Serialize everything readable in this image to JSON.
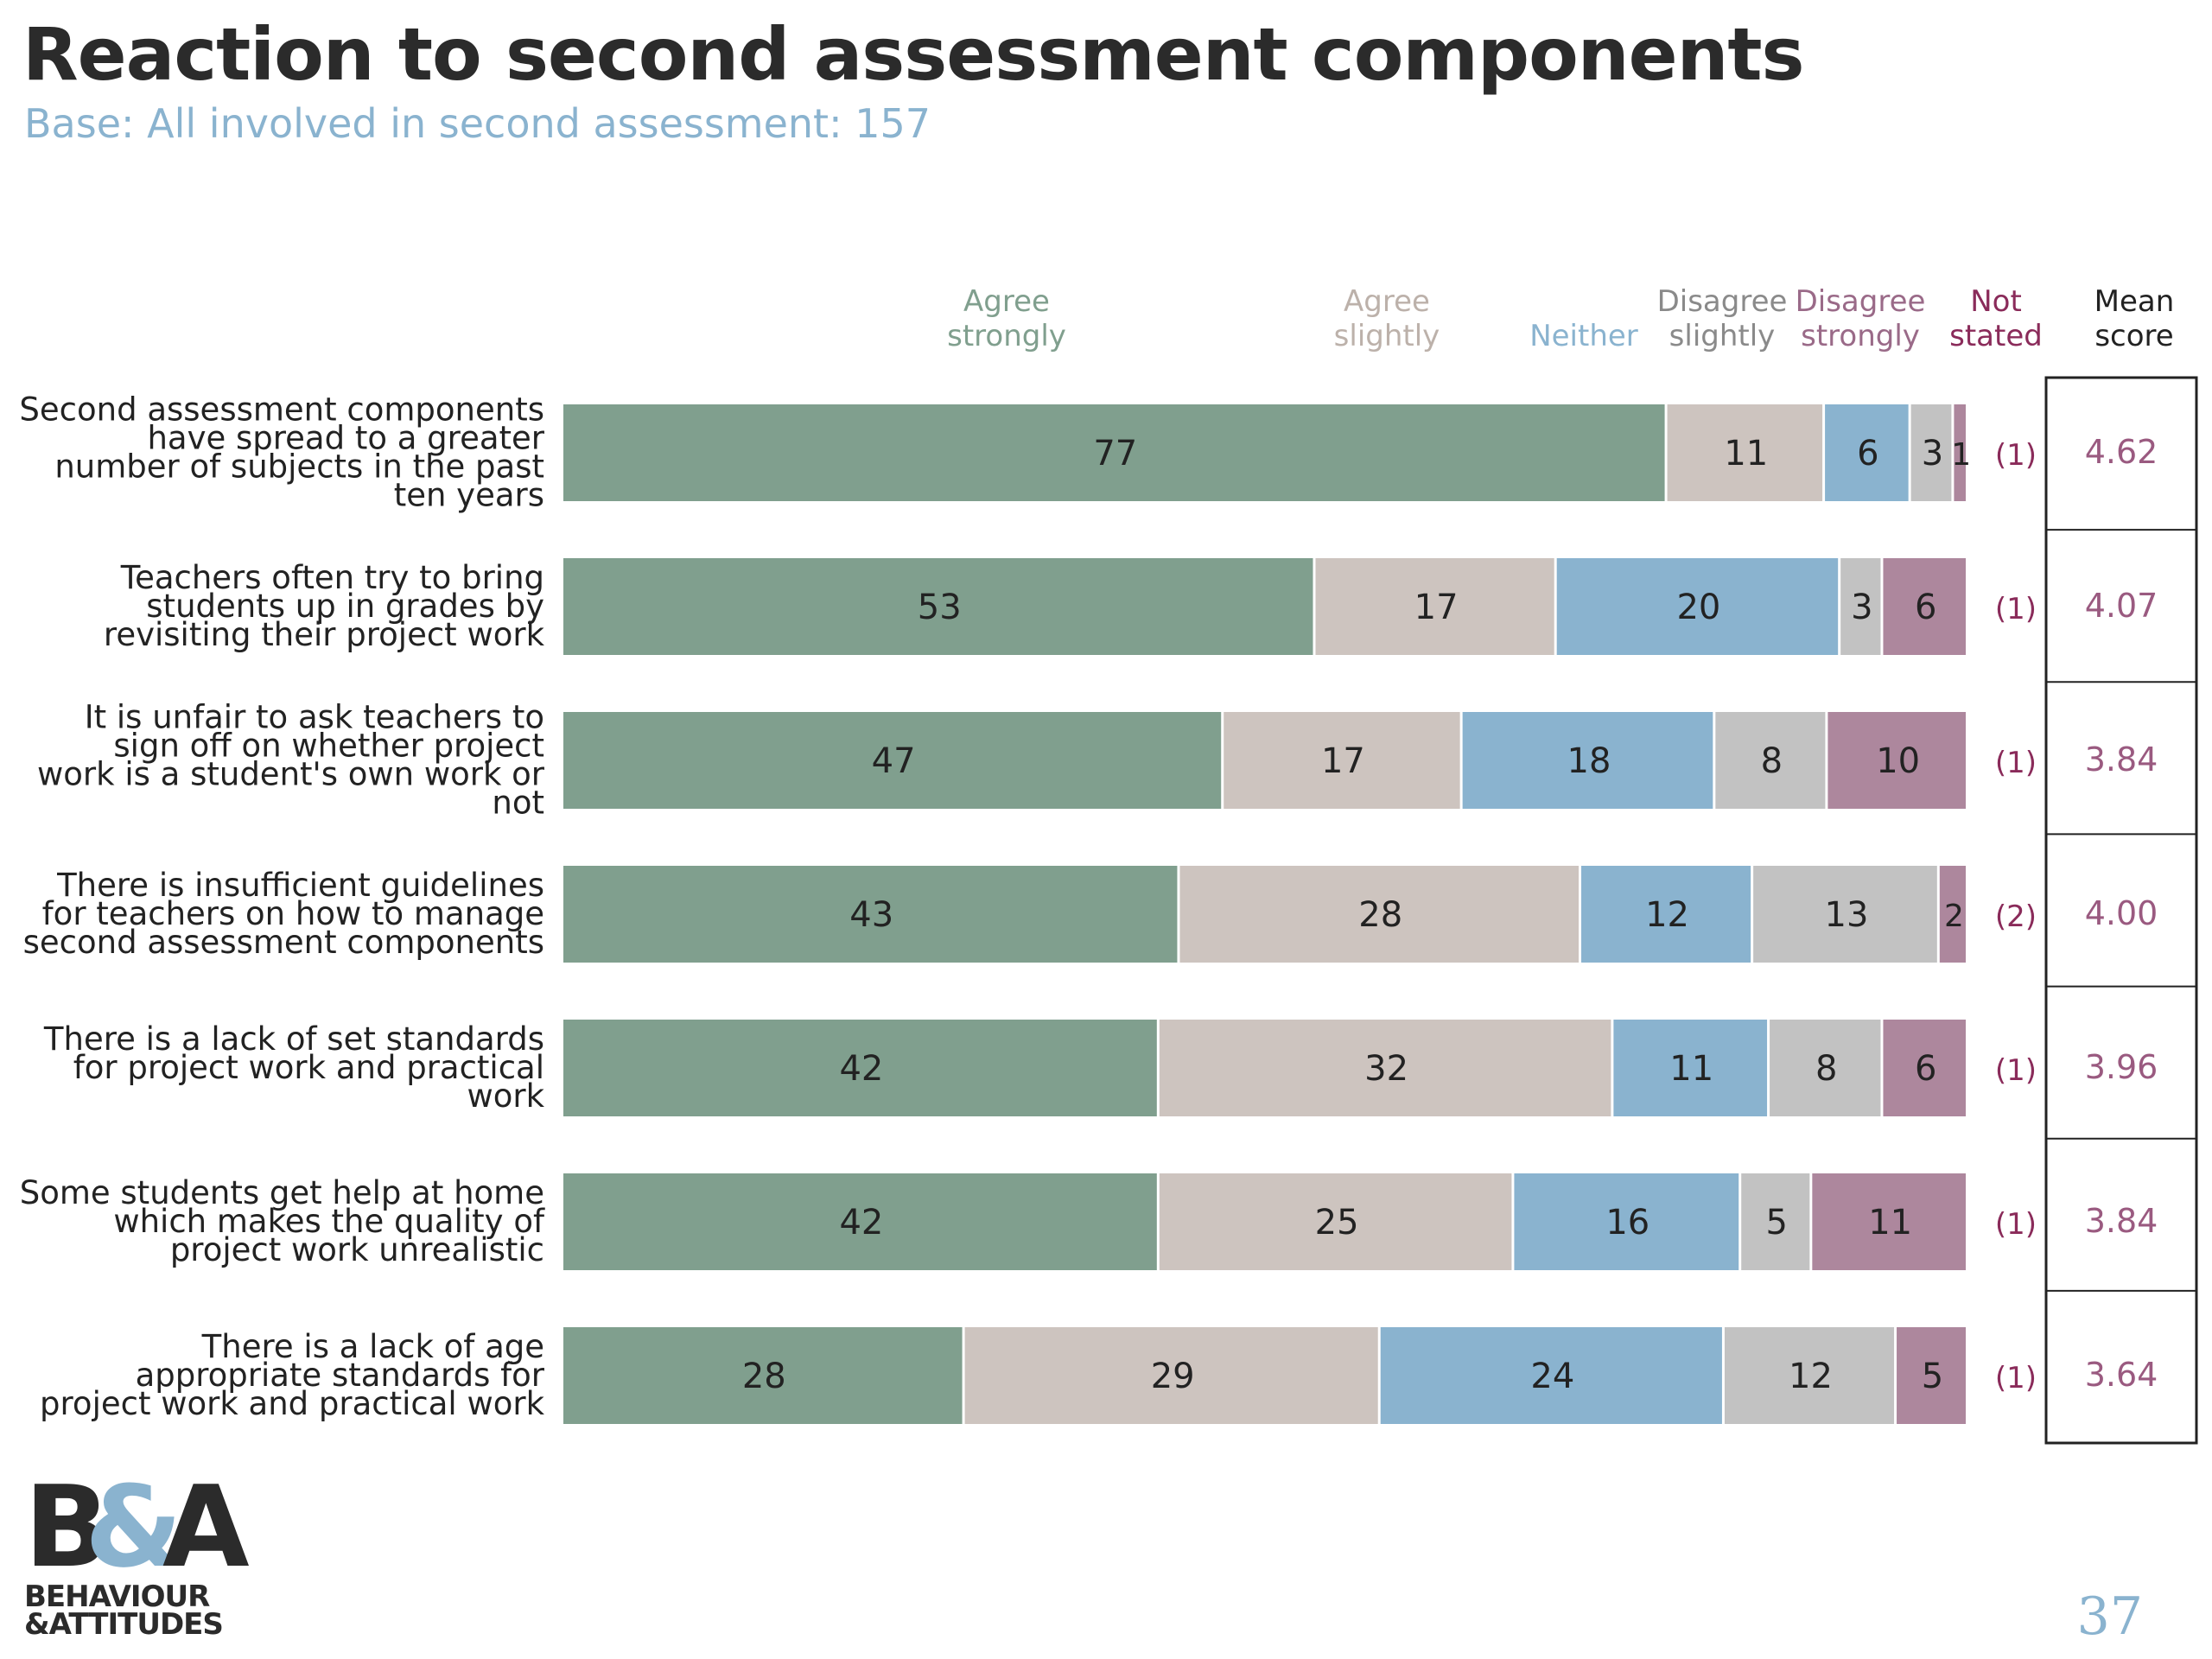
{
  "title": "Reaction to second assessment components",
  "subtitle": "Base: All involved in second assessment: 157",
  "page_number": "37",
  "logo": {
    "mark": "B&A",
    "line1": "BEHAVIOUR",
    "line2": "&ATTITUDES"
  },
  "colors": {
    "agree_strongly": "#809f8e",
    "agree_slightly": "#cdc4bf",
    "neither": "#8ab3cf",
    "disagree_slightly": "#c2c2c2",
    "disagree_strongly": "#ad879d",
    "not_stated": "#8a2b5a",
    "mean_score": "#9a5a80"
  },
  "chart_data": {
    "type": "bar",
    "orientation": "horizontal-stacked",
    "categories": [
      "Second assessment components have spread to a greater number of subjects in the past ten years",
      "Teachers often try to bring students up in grades by revisiting their project work",
      "It is unfair to ask teachers to sign off on whether project work is a student's own work or not",
      "There is insufficient guidelines for teachers on how to manage second assessment components",
      "There is a lack of set standards for project work and practical work",
      "Some students get help at home which makes the quality of project work unrealistic",
      "There is a lack of age appropriate standards for project work and practical work"
    ],
    "category_lines": [
      [
        "Second assessment components",
        "have spread to a greater",
        "number of subjects in the past",
        "ten years"
      ],
      [
        "Teachers often try to bring",
        "students up in grades by",
        "revisiting their project work"
      ],
      [
        "It is unfair to ask teachers to",
        "sign off on whether project",
        "work is a student's own work or",
        "not"
      ],
      [
        "There is insufficient guidelines",
        "for teachers on how to manage",
        "second assessment components"
      ],
      [
        "There is a lack of set standards",
        "for project work and practical",
        "work"
      ],
      [
        "Some students get help at home",
        "which makes the quality of",
        "project work unrealistic"
      ],
      [
        "There is a lack of age",
        "appropriate standards for",
        "project work and practical work"
      ]
    ],
    "series": [
      {
        "name": "Agree strongly",
        "label_lines": [
          "Agree",
          "strongly"
        ],
        "color": "#809f8e",
        "values": [
          77,
          53,
          47,
          43,
          42,
          42,
          28
        ]
      },
      {
        "name": "Agree slightly",
        "label_lines": [
          "Agree",
          "slightly"
        ],
        "color": "#cdc4bf",
        "values": [
          11,
          17,
          17,
          28,
          32,
          25,
          29
        ]
      },
      {
        "name": "Neither",
        "label_lines": [
          "",
          "Neither"
        ],
        "color": "#8ab3cf",
        "values": [
          6,
          20,
          18,
          12,
          11,
          16,
          24
        ]
      },
      {
        "name": "Disagree slightly",
        "label_lines": [
          "Disagree",
          "slightly"
        ],
        "color": "#c2c2c2",
        "values": [
          3,
          3,
          8,
          13,
          8,
          5,
          12
        ]
      },
      {
        "name": "Disagree strongly",
        "label_lines": [
          "Disagree",
          "strongly"
        ],
        "color": "#ad879d",
        "values": [
          1,
          6,
          10,
          2,
          6,
          11,
          5
        ]
      }
    ],
    "not_stated": {
      "label_lines": [
        "Not",
        "stated"
      ],
      "values": [
        "(1)",
        "(1)",
        "(1)",
        "(2)",
        "(1)",
        "(1)",
        "(1)"
      ]
    },
    "mean_score": {
      "label_lines": [
        "Mean",
        "score"
      ],
      "values": [
        "4.62",
        "4.07",
        "3.84",
        "4.00",
        "3.96",
        "3.84",
        "3.64"
      ]
    },
    "xlim": [
      0,
      100
    ],
    "grid": false
  }
}
